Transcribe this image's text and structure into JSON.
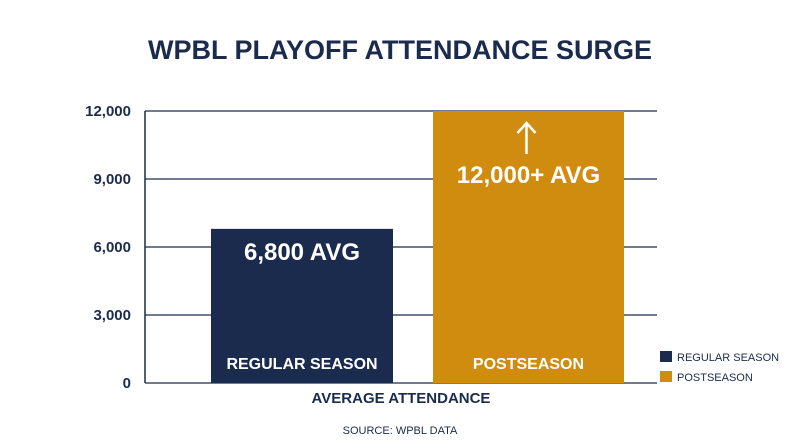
{
  "title": "WPBL PLAYOFF ATTENDANCE SURGE",
  "source": "SOURCE: WPBL DATA",
  "colors": {
    "regular": "#1a2b4e",
    "postseason": "#d08c0e",
    "text": "#1a2b4e",
    "grid": "#1a2b4e"
  },
  "chart_data": {
    "type": "bar",
    "title": "WPBL PLAYOFF ATTENDANCE SURGE",
    "xlabel": "AVERAGE ATTENDANCE",
    "ylabel": "",
    "ylim": [
      0,
      12000
    ],
    "yticks": [
      0,
      3000,
      6000,
      9000,
      12000
    ],
    "ytick_labels": [
      "0",
      "3,000",
      "6,000",
      "9,000",
      "12,000"
    ],
    "categories": [
      "REGULAR SEASON",
      "POSTSEASON"
    ],
    "values": [
      6800,
      12000
    ],
    "data_labels": [
      "6,800 AVG",
      "12,000+ AVG"
    ],
    "legend": {
      "placement": "bottom-right",
      "entries": [
        "REGULAR SEASON",
        "POSTSEASON"
      ]
    },
    "annotations": [
      {
        "type": "arrow-up",
        "category": "POSTSEASON"
      }
    ],
    "grid": true
  }
}
